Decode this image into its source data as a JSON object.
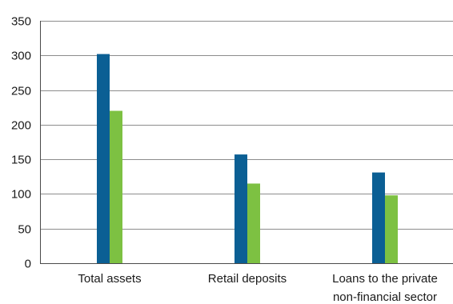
{
  "chart_data": {
    "type": "bar",
    "title": "",
    "xlabel": "",
    "ylabel": "",
    "ylim": [
      0,
      350
    ],
    "yticks": [
      0,
      50,
      100,
      150,
      200,
      250,
      300,
      350
    ],
    "grid": true,
    "legend": "none",
    "categories": [
      [
        "Total assets"
      ],
      [
        "Retail deposits"
      ],
      [
        "Loans to the private",
        "non-financial sector"
      ]
    ],
    "series": [
      {
        "color": "#0b5f94",
        "values": [
          302,
          157,
          131
        ]
      },
      {
        "color": "#7dc142",
        "values": [
          220,
          115,
          98
        ]
      }
    ]
  }
}
